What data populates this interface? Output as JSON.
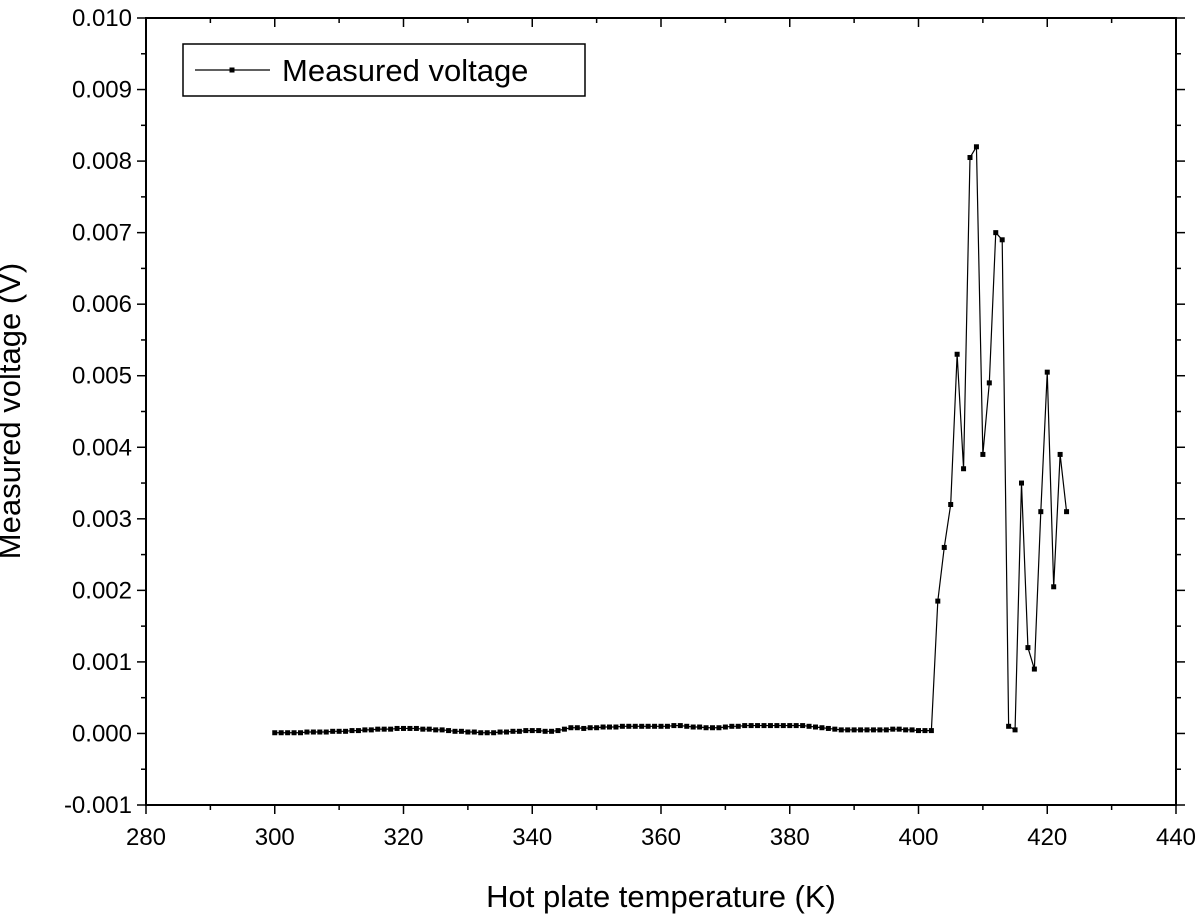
{
  "chart_data": {
    "type": "line",
    "xlabel": "Hot plate temperature (K)",
    "ylabel": "Measured voltage (V)",
    "xlim": [
      280,
      440
    ],
    "ylim": [
      -0.001,
      0.01
    ],
    "x_ticks": [
      "280",
      "300",
      "320",
      "340",
      "360",
      "380",
      "400",
      "420",
      "440"
    ],
    "y_ticks": [
      "-0.001",
      "0.000",
      "0.001",
      "0.002",
      "0.003",
      "0.004",
      "0.005",
      "0.006",
      "0.007",
      "0.008",
      "0.009",
      "0.010"
    ],
    "legend": {
      "position": "top-left",
      "entries": [
        "Measured voltage"
      ]
    },
    "grid": false,
    "line_color": "#000000",
    "marker": "square",
    "series": [
      {
        "name": "Measured voltage",
        "x": [
          300,
          301,
          302,
          303,
          304,
          305,
          306,
          307,
          308,
          309,
          310,
          311,
          312,
          313,
          314,
          315,
          316,
          317,
          318,
          319,
          320,
          321,
          322,
          323,
          324,
          325,
          326,
          327,
          328,
          329,
          330,
          331,
          332,
          333,
          334,
          335,
          336,
          337,
          338,
          339,
          340,
          341,
          342,
          343,
          344,
          345,
          346,
          347,
          348,
          349,
          350,
          351,
          352,
          353,
          354,
          355,
          356,
          357,
          358,
          359,
          360,
          361,
          362,
          363,
          364,
          365,
          366,
          367,
          368,
          369,
          370,
          371,
          372,
          373,
          374,
          375,
          376,
          377,
          378,
          379,
          380,
          381,
          382,
          383,
          384,
          385,
          386,
          387,
          388,
          389,
          390,
          391,
          392,
          393,
          394,
          395,
          396,
          397,
          398,
          399,
          400,
          401,
          402,
          403,
          404,
          405,
          406,
          407,
          408,
          409,
          410,
          411,
          412,
          413,
          414,
          415,
          416,
          417,
          418,
          419,
          420,
          421,
          422,
          423
        ],
        "y": [
          1e-05,
          1e-05,
          1e-05,
          1e-05,
          1e-05,
          2e-05,
          2e-05,
          2e-05,
          2e-05,
          3e-05,
          3e-05,
          3e-05,
          4e-05,
          4e-05,
          5e-05,
          5e-05,
          6e-05,
          6e-05,
          6e-05,
          7e-05,
          7e-05,
          7e-05,
          7e-05,
          6e-05,
          6e-05,
          5e-05,
          5e-05,
          4e-05,
          3e-05,
          3e-05,
          2e-05,
          2e-05,
          1e-05,
          1e-05,
          1e-05,
          2e-05,
          2e-05,
          3e-05,
          3e-05,
          4e-05,
          4e-05,
          4e-05,
          3e-05,
          3e-05,
          4e-05,
          6e-05,
          8e-05,
          8e-05,
          7e-05,
          8e-05,
          8e-05,
          9e-05,
          9e-05,
          9e-05,
          0.0001,
          0.0001,
          0.0001,
          0.0001,
          0.0001,
          0.0001,
          0.0001,
          0.0001,
          0.00011,
          0.00011,
          0.0001,
          9e-05,
          9e-05,
          8e-05,
          8e-05,
          8e-05,
          9e-05,
          0.0001,
          0.0001,
          0.00011,
          0.00011,
          0.00011,
          0.00011,
          0.00011,
          0.00011,
          0.00011,
          0.00011,
          0.00011,
          0.00011,
          0.0001,
          9e-05,
          8e-05,
          7e-05,
          6e-05,
          5e-05,
          5e-05,
          5e-05,
          5e-05,
          5e-05,
          5e-05,
          5e-05,
          5e-05,
          6e-05,
          6e-05,
          5e-05,
          5e-05,
          4e-05,
          4e-05,
          4e-05,
          0.00185,
          0.0026,
          0.0032,
          0.0053,
          0.0037,
          0.00805,
          0.0082,
          0.0039,
          0.0049,
          0.007,
          0.0069,
          0.0001,
          5e-05,
          0.0035,
          0.0012,
          0.0009,
          0.0031,
          0.00505,
          0.00205,
          0.0039,
          0.0031
        ]
      }
    ]
  }
}
